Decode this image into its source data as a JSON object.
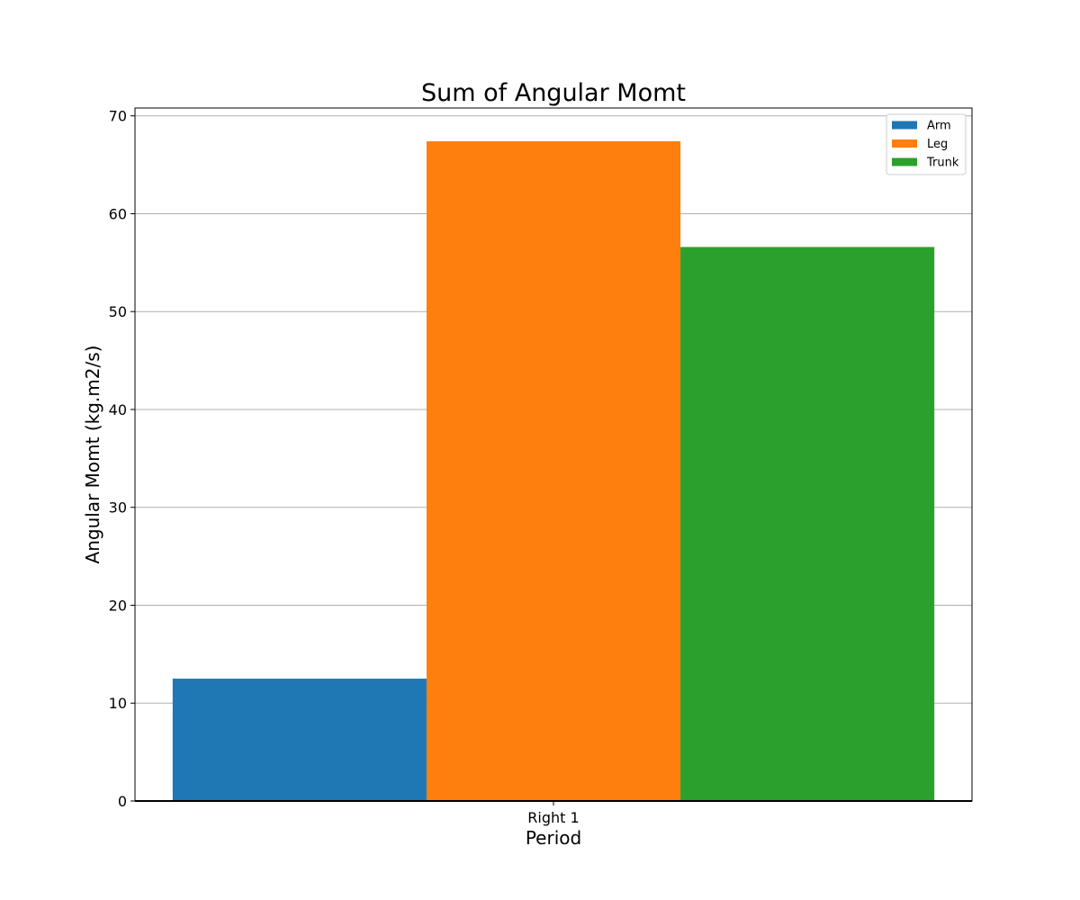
{
  "chart_data": {
    "type": "bar",
    "title": "Sum of Angular Momt",
    "xlabel": "Period",
    "ylabel": "Angular Momt (kg.m2/s)",
    "categories": [
      "Right 1"
    ],
    "series": [
      {
        "name": "Arm",
        "values": [
          12.5
        ],
        "color": "#1f77b4"
      },
      {
        "name": "Leg",
        "values": [
          67.4
        ],
        "color": "#ff7f0e"
      },
      {
        "name": "Trunk",
        "values": [
          56.6
        ],
        "color": "#2ca02c"
      }
    ],
    "ylim": [
      0,
      70.8
    ],
    "yticks": [
      0,
      10,
      20,
      30,
      40,
      50,
      60,
      70
    ],
    "ytick_labels": [
      "0",
      "10",
      "20",
      "30",
      "40",
      "50",
      "60",
      "70"
    ],
    "grid": true,
    "legend_position": "top-right"
  }
}
